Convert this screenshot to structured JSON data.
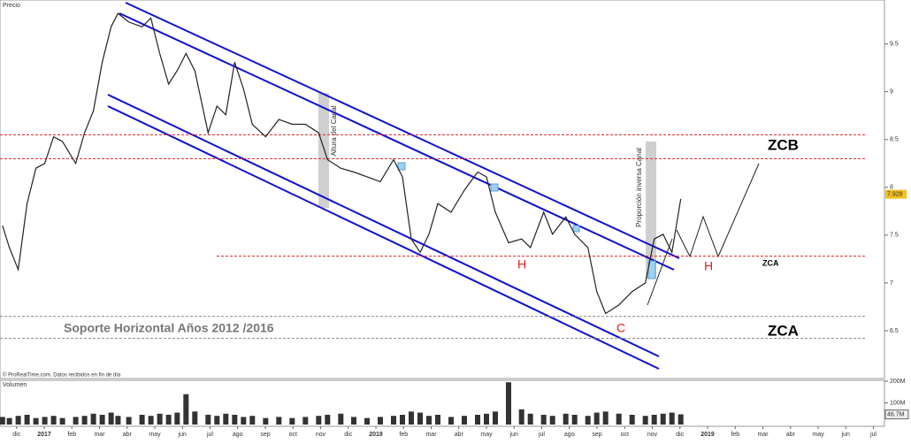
{
  "chart_data": {
    "type": "line",
    "x": [
      -0.51,
      -0.26,
      0.06,
      0.38,
      0.7,
      1.02,
      1.34,
      1.66,
      2.14,
      2.46,
      2.78,
      3.1,
      3.42,
      3.67,
      4.06,
      4.54,
      4.86,
      5.18,
      5.5,
      5.81,
      6.13,
      6.45,
      6.93,
      7.25,
      7.57,
      7.89,
      8.21,
      8.53,
      9.01,
      9.49,
      9.97,
      10.45,
      10.93,
      11.25,
      11.73,
      12.2,
      12.68,
      13.16,
      13.64,
      13.96,
      14.28,
      14.6,
      14.92,
      15.24,
      15.72,
      16.2,
      16.68,
      17.0,
      17.32,
      17.8,
      18.27,
      18.59,
      19.07,
      19.39,
      19.87,
      20.19,
      20.67,
      20.99,
      21.31,
      21.79,
      22.27,
      22.75,
      23.07,
      23.39,
      23.71,
      24.03
    ],
    "series": [
      {
        "name": "Precio",
        "color": "#222222",
        "values": [
          7.6,
          7.37,
          7.14,
          7.83,
          8.2,
          8.25,
          8.53,
          8.48,
          8.25,
          8.57,
          8.8,
          9.31,
          9.68,
          9.82,
          9.73,
          9.68,
          9.77,
          9.4,
          9.08,
          9.22,
          9.4,
          9.22,
          8.57,
          8.85,
          8.76,
          9.31,
          9.03,
          8.66,
          8.53,
          8.71,
          8.66,
          8.66,
          8.57,
          8.29,
          8.2,
          8.16,
          8.11,
          8.06,
          8.29,
          8.11,
          7.46,
          7.32,
          7.51,
          7.83,
          7.74,
          7.97,
          8.16,
          8.11,
          7.74,
          7.42,
          7.46,
          7.37,
          7.74,
          7.51,
          7.69,
          7.51,
          7.37,
          6.91,
          6.68,
          6.77,
          6.91,
          7.0,
          7.46,
          7.51,
          7.32,
          7.88
        ]
      },
      {
        "name": "Volumen",
        "color": "#333333",
        "axis": "y2",
        "values": [
          35000000,
          30000000,
          40000000,
          45000000,
          30000000,
          35000000,
          40000000,
          30000000,
          35000000,
          40000000,
          50000000,
          45000000,
          55000000,
          40000000,
          35000000,
          45000000,
          40000000,
          50000000,
          45000000,
          55000000,
          140000000,
          60000000,
          45000000,
          40000000,
          50000000,
          45000000,
          35000000,
          40000000,
          30000000,
          35000000,
          30000000,
          35000000,
          40000000,
          45000000,
          50000000,
          35000000,
          30000000,
          35000000,
          40000000,
          45000000,
          60000000,
          55000000,
          40000000,
          45000000,
          35000000,
          40000000,
          45000000,
          50000000,
          60000000,
          195000000,
          70000000,
          50000000,
          45000000,
          40000000,
          50000000,
          45000000,
          40000000,
          55000000,
          60000000,
          50000000,
          45000000,
          40000000,
          45000000,
          50000000,
          55000000,
          47000000
        ]
      }
    ],
    "xlim": [
      -0.6,
      31.4
    ],
    "xticks": [
      {
        "value": 0,
        "label": "dic"
      },
      {
        "value": 1,
        "label": "2017"
      },
      {
        "value": 2,
        "label": "feb"
      },
      {
        "value": 3,
        "label": "mar"
      },
      {
        "value": 4,
        "label": "abr"
      },
      {
        "value": 5,
        "label": "may"
      },
      {
        "value": 6,
        "label": "jun"
      },
      {
        "value": 7,
        "label": "jul"
      },
      {
        "value": 8,
        "label": "ago"
      },
      {
        "value": 9,
        "label": "sep"
      },
      {
        "value": 10,
        "label": "oct"
      },
      {
        "value": 11,
        "label": "nov"
      },
      {
        "value": 12,
        "label": "dic"
      },
      {
        "value": 13,
        "label": "2018"
      },
      {
        "value": 14,
        "label": "feb"
      },
      {
        "value": 15,
        "label": "mar"
      },
      {
        "value": 16,
        "label": "abr"
      },
      {
        "value": 17,
        "label": "may"
      },
      {
        "value": 18,
        "label": "jun"
      },
      {
        "value": 19,
        "label": "jul"
      },
      {
        "value": 20,
        "label": "ago"
      },
      {
        "value": 21,
        "label": "sep"
      },
      {
        "value": 22,
        "label": "oct"
      },
      {
        "value": 23,
        "label": "nov"
      },
      {
        "value": 24,
        "label": "dic"
      },
      {
        "value": 25,
        "label": "2019"
      },
      {
        "value": 26,
        "label": "feb"
      },
      {
        "value": 27,
        "label": "mar"
      },
      {
        "value": 28,
        "label": "abr"
      },
      {
        "value": 29,
        "label": "may"
      },
      {
        "value": 30,
        "label": "jun"
      },
      {
        "value": 31,
        "label": "jul"
      }
    ],
    "ylim": [
      6,
      9.96
    ],
    "yticks": [
      6.5,
      7,
      7.5,
      8,
      8.5,
      9,
      9.5
    ],
    "y2lim": [
      0,
      204000000
    ],
    "y2ticks": [
      {
        "value": 100000000,
        "label": "100M"
      },
      {
        "value": 200000000,
        "label": "200M"
      }
    ],
    "last_price": 7.928,
    "last_volume": {
      "value": 46700000,
      "label": "46.7M"
    },
    "levels": [
      {
        "value": 8.55,
        "color": "#e02020"
      },
      {
        "value": 8.3,
        "color": "#e02020"
      },
      {
        "value": 7.28,
        "color": "#e02020"
      },
      {
        "value": 6.65,
        "color": "#888888"
      },
      {
        "value": 6.42,
        "color": "#888888"
      }
    ],
    "annotations": [
      "ZCB",
      "ZCA",
      "ZCA",
      "H",
      "H",
      "C",
      "Soporte Horizontal Años  2012 /2016",
      "Altura del Canal",
      "Proporción inversa Canal"
    ],
    "source": "© ProRealTime.com. Datos recibidos en fin de día"
  }
}
